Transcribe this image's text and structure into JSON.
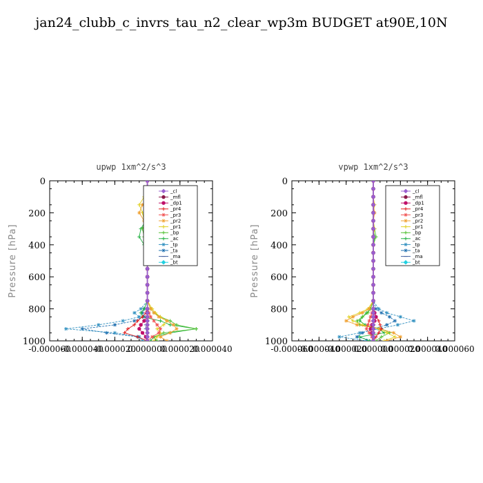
{
  "figure": {
    "title": "jan24_clubb_c_invrs_tau_n2_clear_wp3m  BUDGET at90E,10N"
  },
  "legend": [
    {
      "label": "_cl",
      "color": "#9a5fd0",
      "marker": "diamond"
    },
    {
      "label": "_mfl",
      "color": "#8b1a4a",
      "marker": "circle"
    },
    {
      "label": "_dp1",
      "color": "#c0106a",
      "marker": "circle"
    },
    {
      "label": "_pr4",
      "color": "#e02020",
      "marker": "plus"
    },
    {
      "label": "_pr3",
      "color": "#f05050",
      "marker": "star"
    },
    {
      "label": "_pr2",
      "color": "#f0a030",
      "marker": "star"
    },
    {
      "label": "_pr1",
      "color": "#e0d020",
      "marker": "plus"
    },
    {
      "label": "_bp",
      "color": "#50c030",
      "marker": "plus"
    },
    {
      "label": "_ac",
      "color": "#20b040",
      "marker": "plus"
    },
    {
      "label": "_tp",
      "color": "#3090c0",
      "marker": "star"
    },
    {
      "label": "_ta",
      "color": "#2070b0",
      "marker": "star"
    },
    {
      "label": "_ma",
      "color": "#4060a0",
      "marker": "dash"
    },
    {
      "label": "_bt",
      "color": "#20d0e0",
      "marker": "diamond"
    }
  ],
  "chart_data": [
    {
      "type": "line",
      "title": "upwp   1xm^2/s^3",
      "ylabel": "Pressure [hPa]",
      "xlabel": "",
      "ylim": [
        1000,
        0
      ],
      "xlim": [
        -6e-05,
        4e-05
      ],
      "xticks": [
        "-0.000060",
        "-0.000040",
        "-0.000020",
        "0.000000",
        "0.000020",
        "0.000040"
      ],
      "yticks": [
        "0",
        "200",
        "400",
        "600",
        "800",
        "1000"
      ],
      "pressure": [
        0,
        50,
        100,
        150,
        200,
        250,
        300,
        350,
        400,
        450,
        500,
        550,
        600,
        650,
        700,
        750,
        800,
        825,
        850,
        875,
        900,
        925,
        950,
        975,
        1000
      ],
      "series": [
        {
          "key": "_cl",
          "values": [
            0,
            0,
            0,
            0,
            0,
            0,
            0,
            0,
            0,
            0,
            0,
            0,
            0,
            0,
            0,
            0,
            0,
            0,
            0,
            0,
            0,
            0,
            0,
            0,
            0
          ]
        },
        {
          "key": "_mfl",
          "values": [
            0,
            0,
            0,
            0,
            0,
            0,
            0,
            0,
            0,
            0,
            0,
            0,
            0,
            0,
            0,
            0,
            0,
            0,
            0,
            0,
            0,
            0,
            0,
            0,
            0
          ]
        },
        {
          "key": "_dp1",
          "values": [
            0,
            0,
            0,
            0,
            0,
            0,
            0,
            0,
            0,
            0,
            0,
            0,
            0,
            0,
            0,
            0,
            0,
            0,
            0,
            -2e-06,
            -4e-06,
            -5e-06,
            -3e-06,
            -1e-06,
            0
          ]
        },
        {
          "key": "_pr4",
          "values": [
            0,
            0,
            0,
            0,
            0,
            0,
            0,
            0,
            0,
            0,
            0,
            0,
            0,
            0,
            0,
            0,
            0,
            -1e-06,
            -3e-06,
            -6e-06,
            -8e-06,
            -1.2e-05,
            -1.4e-05,
            -6e-06,
            0
          ]
        },
        {
          "key": "_pr3",
          "values": [
            0,
            0,
            0,
            0,
            0,
            0,
            0,
            0,
            0,
            0,
            0,
            0,
            0,
            0,
            0,
            0,
            0,
            1e-06,
            2e-06,
            4e-06,
            6e-06,
            8e-06,
            7e-06,
            3e-06,
            0
          ]
        },
        {
          "key": "_pr2",
          "values": [
            0,
            0,
            1e-06,
            -3e-06,
            -5e-06,
            -2e-06,
            0,
            0,
            0,
            0,
            0,
            0,
            0,
            0,
            0,
            0,
            2e-06,
            4e-06,
            7e-06,
            1.2e-05,
            1.6e-05,
            1.8e-05,
            1.4e-05,
            8e-06,
            1.2e-05
          ]
        },
        {
          "key": "_pr1",
          "values": [
            0,
            0,
            -2e-06,
            -5e-06,
            -3e-06,
            -2e-06,
            1e-06,
            0,
            0,
            0,
            0,
            0,
            0,
            0,
            0,
            0,
            3e-06,
            5e-06,
            8e-06,
            1.2e-05,
            1e-05,
            6e-06,
            8e-06,
            6e-06,
            4e-06
          ]
        },
        {
          "key": "_bp",
          "values": [
            0,
            0,
            0,
            0,
            0,
            -1e-06,
            -3e-06,
            -2e-06,
            0,
            0,
            0,
            0,
            0,
            0,
            0,
            0,
            2e-06,
            4e-06,
            8e-06,
            1.4e-05,
            1.8e-05,
            3e-05,
            1e-05,
            4e-06,
            6e-06
          ]
        },
        {
          "key": "_ac",
          "values": [
            0,
            0,
            0,
            0,
            0,
            -1e-06,
            -4e-06,
            -5e-06,
            -2e-06,
            0,
            0,
            0,
            0,
            0,
            0,
            0,
            -2e-06,
            -4e-06,
            -3e-06,
            8e-06,
            1.4e-05,
            3e-05,
            1.4e-05,
            4e-06,
            2e-06
          ]
        },
        {
          "key": "_tp",
          "values": [
            0,
            0,
            2e-06,
            5e-06,
            2e-06,
            0,
            0,
            0,
            0,
            0,
            0,
            0,
            0,
            0,
            0,
            0,
            -4e-06,
            -8e-06,
            -5e-06,
            -1.5e-05,
            -3e-05,
            -5e-05,
            -2e-05,
            -5e-06,
            -3e-06
          ]
        },
        {
          "key": "_ta",
          "values": [
            0,
            0,
            1e-06,
            3e-06,
            1e-06,
            0,
            0,
            0,
            0,
            0,
            0,
            0,
            0,
            0,
            0,
            0,
            -2e-06,
            -3e-06,
            -2e-06,
            -8e-06,
            -2e-05,
            -4e-05,
            -2.5e-05,
            -6e-06,
            0
          ]
        },
        {
          "key": "_ma",
          "values": [
            0,
            0,
            0,
            0,
            0,
            0,
            0,
            0,
            0,
            0,
            0,
            0,
            0,
            0,
            0,
            0,
            0,
            0,
            0,
            0,
            -1e-06,
            -1e-06,
            0,
            0,
            0
          ]
        },
        {
          "key": "_bt",
          "values": [
            0,
            0,
            0,
            0,
            0,
            0,
            0,
            0,
            0,
            0,
            0,
            0,
            0,
            0,
            0,
            0,
            0,
            0,
            0,
            0,
            0,
            0,
            0,
            0,
            0
          ]
        }
      ]
    },
    {
      "type": "line",
      "title": "vpwp   1xm^2/s^3",
      "ylabel": "Pressure [hPa]",
      "xlabel": "",
      "ylim": [
        1000,
        0
      ],
      "xlim": [
        -6e-05,
        6e-05
      ],
      "xticks": [
        "-0.000060",
        "-0.000040",
        "-0.000020",
        "0.000000",
        "0.000020",
        "0.000040",
        "0.000060"
      ],
      "yticks": [
        "0",
        "200",
        "400",
        "600",
        "800",
        "1000"
      ],
      "pressure": [
        0,
        50,
        100,
        150,
        200,
        250,
        300,
        350,
        400,
        450,
        500,
        550,
        600,
        650,
        700,
        750,
        800,
        825,
        850,
        875,
        900,
        925,
        950,
        975,
        1000
      ],
      "series": [
        {
          "key": "_cl",
          "values": [
            0,
            0,
            0,
            0,
            0,
            0,
            0,
            0,
            0,
            0,
            0,
            0,
            0,
            0,
            0,
            0,
            0,
            0,
            0,
            0,
            0,
            0,
            0,
            0,
            0
          ]
        },
        {
          "key": "_mfl",
          "values": [
            0,
            0,
            0,
            0,
            0,
            0,
            0,
            0,
            0,
            0,
            0,
            0,
            0,
            0,
            0,
            0,
            0,
            0,
            0,
            0,
            0,
            0,
            0,
            0,
            0
          ]
        },
        {
          "key": "_dp1",
          "values": [
            0,
            0,
            0,
            0,
            0,
            0,
            0,
            0,
            0,
            0,
            0,
            0,
            0,
            0,
            0,
            0,
            0,
            1e-06,
            2e-06,
            1e-06,
            -1e-06,
            -2e-06,
            -1e-06,
            0,
            0
          ]
        },
        {
          "key": "_pr4",
          "values": [
            0,
            0,
            0,
            0,
            0,
            0,
            0,
            0,
            0,
            0,
            0,
            0,
            0,
            0,
            0,
            0,
            0,
            1e-06,
            2e-06,
            4e-06,
            5e-06,
            6e-06,
            4e-06,
            2e-06,
            0
          ]
        },
        {
          "key": "_pr3",
          "values": [
            0,
            0,
            0,
            0,
            0,
            0,
            0,
            0,
            0,
            0,
            0,
            0,
            0,
            0,
            0,
            0,
            0,
            -1e-06,
            -2e-06,
            -3e-06,
            -4e-06,
            -5e-06,
            -3e-06,
            -1e-06,
            0
          ]
        },
        {
          "key": "_pr2",
          "values": [
            0,
            0,
            0,
            0,
            1e-06,
            0,
            0,
            0,
            0,
            0,
            0,
            0,
            0,
            0,
            0,
            0,
            -3e-06,
            -8e-06,
            -1.5e-05,
            -2e-05,
            -1.2e-05,
            5e-06,
            1.5e-05,
            2e-05,
            1e-05
          ]
        },
        {
          "key": "_pr1",
          "values": [
            0,
            0,
            0,
            1e-06,
            0,
            0,
            1e-06,
            0,
            0,
            0,
            0,
            0,
            0,
            0,
            0,
            0,
            -4e-06,
            -1e-05,
            -1.8e-05,
            -1.5e-05,
            -8e-06,
            4e-06,
            1e-05,
            1.6e-05,
            8e-06
          ]
        },
        {
          "key": "_bp",
          "values": [
            0,
            0,
            0,
            0,
            0,
            0,
            1e-06,
            2e-06,
            0,
            0,
            0,
            0,
            0,
            0,
            0,
            0,
            -2e-06,
            -4e-06,
            -8e-06,
            -1.2e-05,
            -1e-05,
            6e-06,
            1.2e-05,
            6e-06,
            2e-06
          ]
        },
        {
          "key": "_ac",
          "values": [
            0,
            0,
            0,
            0,
            0,
            0,
            0,
            1e-06,
            0,
            0,
            0,
            0,
            0,
            0,
            0,
            0,
            -2e-06,
            -5e-06,
            -8e-06,
            -1e-05,
            -6e-06,
            4e-06,
            8e-06,
            -1e-05,
            -3e-06
          ]
        },
        {
          "key": "_tp",
          "values": [
            0,
            0,
            0,
            0,
            0,
            0,
            0,
            0,
            0,
            0,
            0,
            0,
            0,
            0,
            0,
            0,
            4e-06,
            1e-05,
            2e-05,
            3e-05,
            1.8e-05,
            4e-06,
            -1e-05,
            -2.5e-05,
            -5e-06
          ]
        },
        {
          "key": "_ta",
          "values": [
            0,
            0,
            0,
            0,
            0,
            0,
            0,
            0,
            0,
            0,
            0,
            0,
            0,
            0,
            0,
            0,
            2e-06,
            6e-06,
            1.2e-05,
            1.6e-05,
            1e-05,
            0,
            -8e-06,
            -1.2e-05,
            0
          ]
        },
        {
          "key": "_ma",
          "values": [
            0,
            0,
            0,
            0,
            0,
            0,
            0,
            0,
            0,
            0,
            0,
            0,
            0,
            0,
            0,
            0,
            0,
            0,
            0,
            0,
            0,
            0,
            0,
            0,
            0
          ]
        },
        {
          "key": "_bt",
          "values": [
            0,
            0,
            0,
            0,
            0,
            0,
            0,
            0,
            0,
            0,
            0,
            0,
            0,
            0,
            0,
            0,
            0,
            0,
            0,
            0,
            0,
            0,
            0,
            0,
            0
          ]
        }
      ]
    }
  ]
}
